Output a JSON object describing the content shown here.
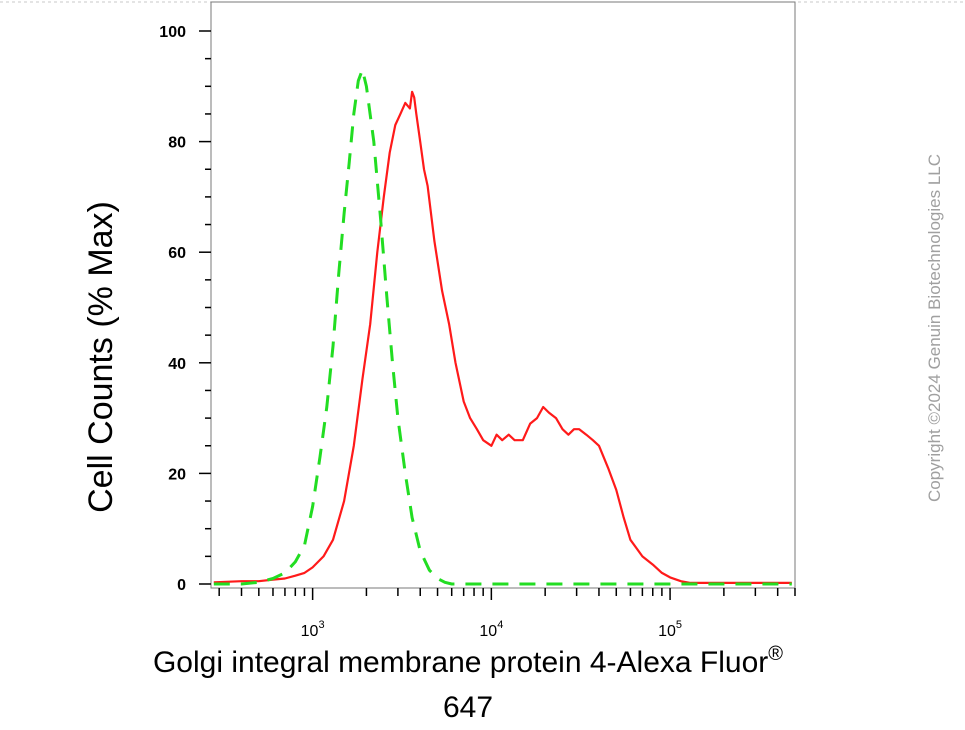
{
  "chart_data": {
    "type": "line",
    "ylabel": "Cell Counts (% Max)",
    "xlabel_line1": "Golgi integral membrane protein 4-Alexa Fluor",
    "xlabel_sup": "®",
    "xlabel_line2": "647",
    "copyright": "Copyright ©2024 Genuin Biotechnologies LLC",
    "x_scale": "log",
    "xlim": [
      270,
      500000
    ],
    "ylim": [
      0,
      105
    ],
    "y_ticks": [
      0,
      20,
      40,
      60,
      80,
      100
    ],
    "y_tick_labels": [
      "0",
      "20",
      "40",
      "60",
      "80",
      "100"
    ],
    "x_ticks": [
      1000,
      10000,
      100000
    ],
    "x_tick_labels": [
      {
        "base": "10",
        "exp": "3"
      },
      {
        "base": "10",
        "exp": "4"
      },
      {
        "base": "10",
        "exp": "5"
      }
    ],
    "grid": false,
    "legend": "none",
    "colors": {
      "sample": "#ff1a1a",
      "control": "#22dd22"
    },
    "series": [
      {
        "style": "solid",
        "color": "#ff1a1a",
        "x": [
          280,
          400,
          500,
          600,
          700,
          800,
          900,
          1000,
          1150,
          1300,
          1500,
          1700,
          1900,
          2100,
          2300,
          2500,
          2700,
          2900,
          3100,
          3300,
          3500,
          3600,
          3700,
          3800,
          4000,
          4200,
          4400,
          4800,
          5300,
          5800,
          6300,
          7000,
          7600,
          8300,
          9000,
          10000,
          10700,
          11500,
          12500,
          13500,
          15000,
          16500,
          18000,
          19500,
          21000,
          23000,
          25000,
          27000,
          29000,
          31000,
          34000,
          37000,
          40000,
          45000,
          50000,
          55000,
          60000,
          70000,
          80000,
          90000,
          100000,
          115000,
          130000,
          150000,
          200000,
          300000,
          480000
        ],
        "y": [
          0.3,
          0.5,
          0.5,
          0.8,
          1.0,
          1.5,
          2.0,
          3.0,
          5.0,
          8.0,
          15.0,
          25.0,
          37.0,
          47.0,
          60.0,
          70.0,
          78.0,
          83.0,
          85.0,
          87.0,
          86.0,
          89.0,
          88.0,
          85.0,
          80.0,
          75.0,
          72.0,
          62.0,
          53.0,
          47.0,
          40.0,
          33.0,
          30.0,
          28.0,
          26.0,
          25.0,
          27.0,
          26.0,
          27.0,
          26.0,
          26.0,
          29.0,
          30.0,
          32.0,
          31.0,
          30.0,
          28.0,
          27.0,
          28.0,
          28.0,
          27.0,
          26.0,
          25.0,
          21.0,
          17.0,
          12.0,
          8.0,
          5.0,
          3.5,
          2.0,
          1.2,
          0.5,
          0.2,
          0.2,
          0.2,
          0.2,
          0.2
        ]
      },
      {
        "style": "dashed",
        "color": "#22dd22",
        "x": [
          280,
          400,
          500,
          600,
          700,
          800,
          900,
          1000,
          1100,
          1200,
          1300,
          1400,
          1500,
          1600,
          1700,
          1800,
          1900,
          2000,
          2200,
          2400,
          2600,
          2800,
          3000,
          3300,
          3600,
          4000,
          4500,
          5000,
          5500,
          6000,
          7000,
          10000,
          30000,
          100000,
          480000
        ],
        "y": [
          0,
          0,
          0.3,
          1.0,
          2.0,
          4.0,
          7.0,
          14.0,
          23.0,
          32.0,
          43.0,
          56.0,
          67.0,
          76.0,
          85.0,
          91.0,
          93.0,
          90.0,
          80.0,
          66.0,
          52.0,
          40.0,
          30.0,
          20.0,
          12.0,
          6.0,
          2.5,
          1.0,
          0.3,
          0,
          0,
          0,
          0,
          0,
          0
        ]
      }
    ]
  }
}
